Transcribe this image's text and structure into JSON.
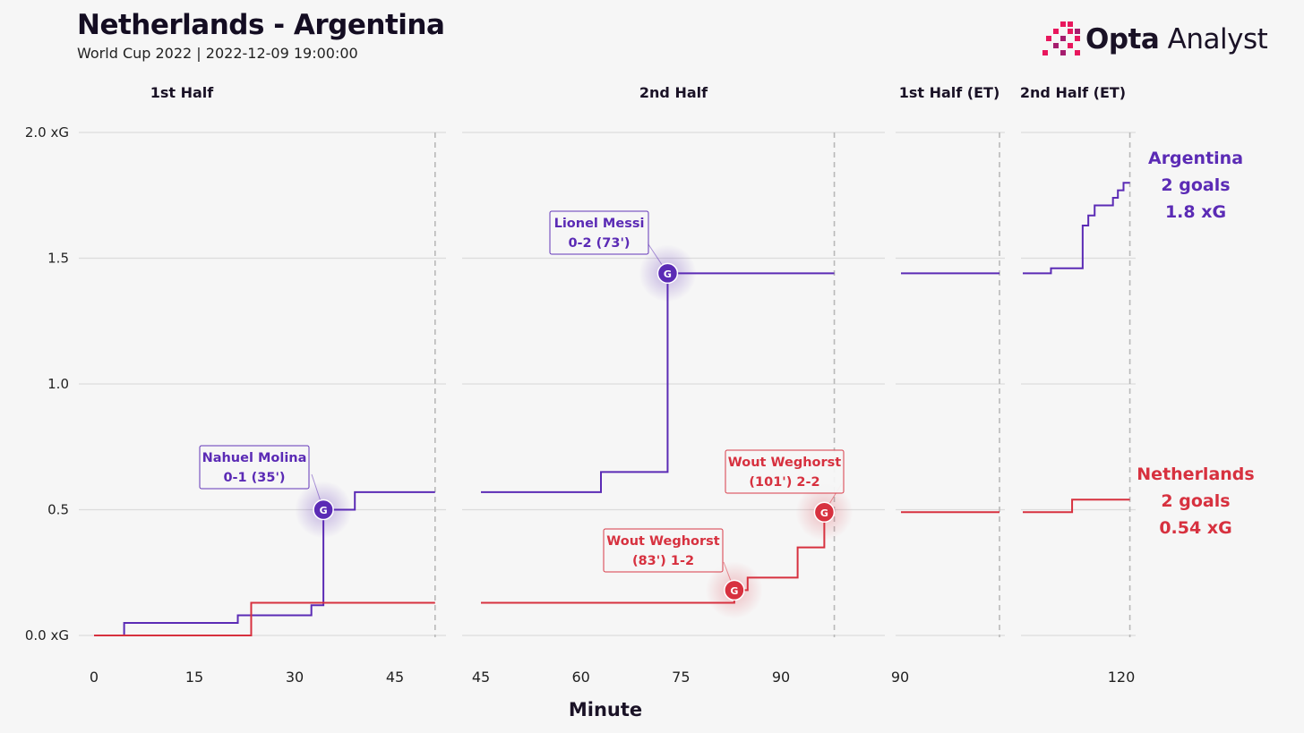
{
  "header": {
    "title": "Netherlands - Argentina",
    "subtitle": "World Cup 2022 | 2022-12-09 19:00:00"
  },
  "brand": {
    "name_bold": "Opta",
    "name_regular": "Analyst",
    "accent": "#e8175d"
  },
  "colors": {
    "argentina": "#5b2bb5",
    "netherlands": "#d7313f",
    "grid": "#dcdcdc",
    "period_end": "#b9b9b9"
  },
  "chart_data": {
    "type": "line",
    "xlabel": "Minute",
    "ylabel": "",
    "ylim": [
      0,
      2.0
    ],
    "yticks": [
      {
        "v": 0,
        "label": "0.0 xG"
      },
      {
        "v": 0.5,
        "label": "0.5"
      },
      {
        "v": 1.0,
        "label": "1.0"
      },
      {
        "v": 1.5,
        "label": "1.5"
      },
      {
        "v": 2.0,
        "label": "2.0 xG"
      }
    ],
    "grid": true,
    "periods": [
      {
        "name": "1st Half",
        "xmin": 0,
        "xmax": 51,
        "end": 51,
        "ticks": [
          0,
          15,
          30,
          45
        ]
      },
      {
        "name": "2nd Half",
        "xmin": 45,
        "xmax": 98,
        "end": 98,
        "ticks": [
          45,
          60,
          75,
          90
        ]
      },
      {
        "name": "1st Half (ET)",
        "xmin": 90,
        "xmax": 105,
        "end": 105,
        "ticks": [
          90
        ]
      },
      {
        "name": "2nd Half (ET)",
        "xmin": 105,
        "xmax": 120,
        "end": 120.2,
        "ticks": [
          120
        ]
      }
    ],
    "series": [
      {
        "name": "Argentina",
        "color": "#5b2bb5",
        "steps": [
          {
            "period": 0,
            "points": [
              [
                0,
                0
              ],
              [
                4.5,
                0.05
              ],
              [
                21.5,
                0.08
              ],
              [
                32.5,
                0.12
              ],
              [
                34.3,
                0.5
              ],
              [
                39,
                0.57
              ],
              [
                51,
                0.57
              ]
            ]
          },
          {
            "period": 1,
            "points": [
              [
                45,
                0.57
              ],
              [
                63,
                0.65
              ],
              [
                73,
                1.44
              ],
              [
                98,
                1.44
              ]
            ]
          },
          {
            "period": 2,
            "points": [
              [
                90,
                1.44
              ],
              [
                105,
                1.44
              ]
            ]
          },
          {
            "period": 3,
            "points": [
              [
                105,
                1.44
              ],
              [
                109,
                1.46
              ],
              [
                113.5,
                1.63
              ],
              [
                114.3,
                1.67
              ],
              [
                115.2,
                1.71
              ],
              [
                117.8,
                1.74
              ],
              [
                118.5,
                1.77
              ],
              [
                119.3,
                1.8
              ],
              [
                120.2,
                1.8
              ]
            ]
          }
        ]
      },
      {
        "name": "Netherlands",
        "color": "#d7313f",
        "steps": [
          {
            "period": 0,
            "points": [
              [
                0,
                0
              ],
              [
                23.5,
                0.13
              ],
              [
                51,
                0.13
              ]
            ]
          },
          {
            "period": 1,
            "points": [
              [
                45,
                0.13
              ],
              [
                83,
                0.18
              ],
              [
                85,
                0.23
              ],
              [
                92.5,
                0.35
              ],
              [
                96.5,
                0.49
              ],
              [
                98,
                0.49
              ]
            ]
          },
          {
            "period": 2,
            "points": [
              [
                90,
                0.49
              ],
              [
                105,
                0.49
              ]
            ]
          },
          {
            "period": 3,
            "points": [
              [
                105,
                0.49
              ],
              [
                112,
                0.54
              ],
              [
                120.2,
                0.54
              ]
            ]
          }
        ]
      }
    ],
    "goals": [
      {
        "team": "Argentina",
        "period": 0,
        "minute": 34.3,
        "xg": 0.5,
        "line1": "Nahuel Molina",
        "line2": "0-1 (35')"
      },
      {
        "team": "Argentina",
        "period": 1,
        "minute": 73,
        "xg": 1.44,
        "line1": "Lionel Messi",
        "line2": "0-2 (73')"
      },
      {
        "team": "Netherlands",
        "period": 1,
        "minute": 83,
        "xg": 0.18,
        "line1": "Wout Weghorst",
        "line2": "(83') 1-2"
      },
      {
        "team": "Netherlands",
        "period": 1,
        "minute": 96.5,
        "xg": 0.49,
        "line1": "Wout Weghorst",
        "line2": "(101') 2-2"
      }
    ],
    "goal_marker": "G",
    "team_labels": [
      {
        "team": "Argentina",
        "lines": [
          "Argentina",
          "2 goals",
          "1.8 xG"
        ],
        "color": "#5b2bb5"
      },
      {
        "team": "Netherlands",
        "lines": [
          "Netherlands",
          "2 goals",
          "0.54 xG"
        ],
        "color": "#d7313f"
      }
    ]
  }
}
